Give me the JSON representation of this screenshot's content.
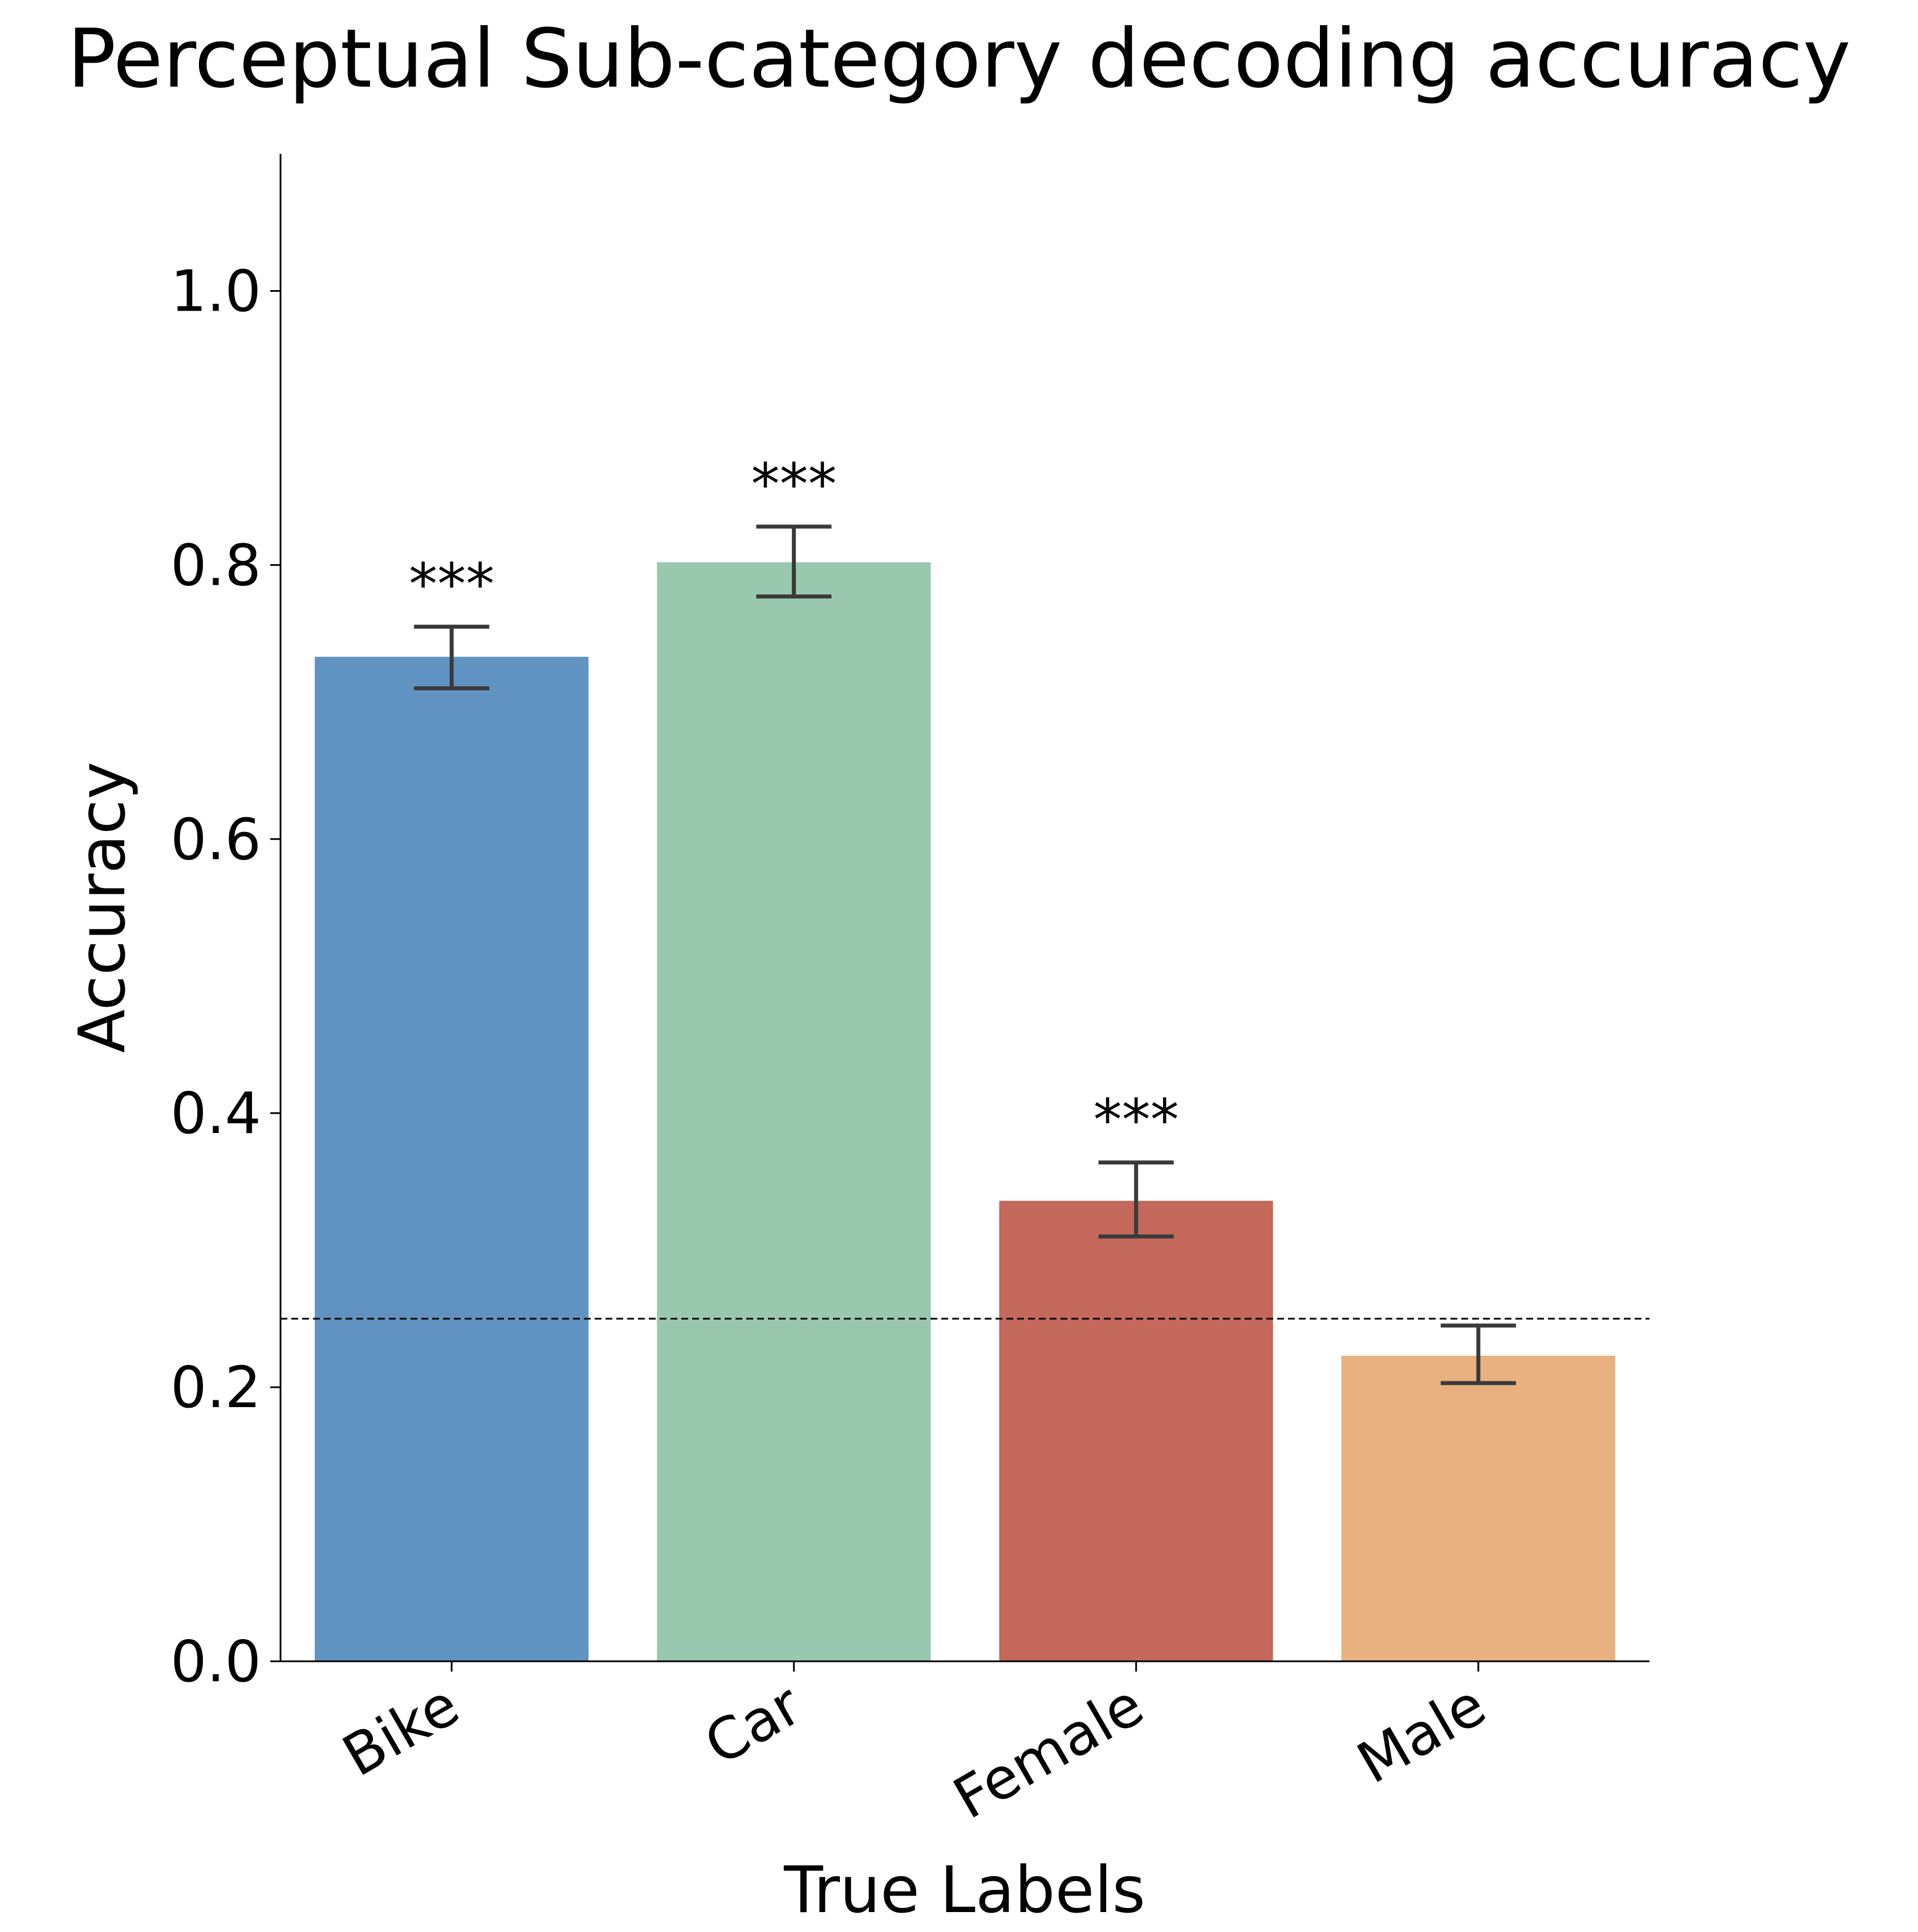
{
  "chart_data": {
    "type": "bar",
    "title": "Perceptual Sub-category decoding accuracy",
    "xlabel": "True Labels",
    "ylabel": "Accuracy",
    "categories": [
      "Bike",
      "Car",
      "Female",
      "Male"
    ],
    "values": [
      0.733,
      0.802,
      0.336,
      0.223
    ],
    "error": [
      [
        0.71,
        0.755
      ],
      [
        0.777,
        0.828
      ],
      [
        0.31,
        0.364
      ],
      [
        0.203,
        0.245
      ]
    ],
    "significance": [
      "***",
      "***",
      "***",
      ""
    ],
    "colors": [
      "#6093c2",
      "#99c8ae",
      "#c4685b",
      "#e8b17f"
    ],
    "error_color": "#3a3a3a",
    "chance_level": 0.25,
    "ylim": [
      0,
      1.1
    ],
    "yticks": [
      0.0,
      0.2,
      0.4,
      0.6,
      0.8,
      1.0
    ],
    "ytick_labels": [
      "0.0",
      "0.2",
      "0.4",
      "0.6",
      "0.8",
      "1.0"
    ],
    "grid": false,
    "legend": "none"
  }
}
